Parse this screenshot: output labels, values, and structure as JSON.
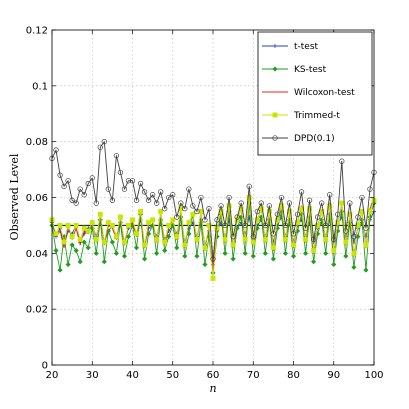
{
  "chart_data": {
    "type": "line",
    "xlabel": "n",
    "ylabel": "Observed Level",
    "xlim": [
      20,
      100
    ],
    "ylim": [
      0,
      0.12
    ],
    "xticks": [
      "20",
      "30",
      "40",
      "50",
      "60",
      "70",
      "80",
      "90",
      "100"
    ],
    "yticks": [
      "0",
      "0.02",
      "0.04",
      "0.06",
      "0.08",
      "0.1",
      "0.12"
    ],
    "grid": true,
    "legend_position": "top-right",
    "reference_line": 0.05,
    "x": [
      20,
      21,
      22,
      23,
      24,
      25,
      26,
      27,
      28,
      29,
      30,
      31,
      32,
      33,
      34,
      35,
      36,
      37,
      38,
      39,
      40,
      41,
      42,
      43,
      44,
      45,
      46,
      47,
      48,
      49,
      50,
      51,
      52,
      53,
      54,
      55,
      56,
      57,
      58,
      59,
      60,
      61,
      62,
      63,
      64,
      65,
      66,
      67,
      68,
      69,
      70,
      71,
      72,
      73,
      74,
      75,
      76,
      77,
      78,
      79,
      80,
      81,
      82,
      83,
      84,
      85,
      86,
      87,
      88,
      89,
      90,
      91,
      92,
      93,
      94,
      95,
      96,
      97,
      98,
      99,
      100
    ],
    "series": [
      {
        "name": "t-test",
        "color": "#1f3fd6",
        "marker": "plus",
        "values": [
          0.051,
          0.046,
          0.049,
          0.043,
          0.048,
          0.047,
          0.05,
          0.044,
          0.047,
          0.049,
          0.05,
          0.046,
          0.052,
          0.044,
          0.048,
          0.05,
          0.046,
          0.051,
          0.044,
          0.049,
          0.05,
          0.047,
          0.052,
          0.043,
          0.049,
          0.05,
          0.046,
          0.052,
          0.045,
          0.048,
          0.05,
          0.047,
          0.053,
          0.044,
          0.049,
          0.051,
          0.046,
          0.052,
          0.043,
          0.048,
          0.036,
          0.048,
          0.051,
          0.046,
          0.052,
          0.043,
          0.049,
          0.051,
          0.047,
          0.053,
          0.045,
          0.05,
          0.052,
          0.046,
          0.051,
          0.044,
          0.05,
          0.053,
          0.046,
          0.051,
          0.044,
          0.05,
          0.052,
          0.046,
          0.051,
          0.044,
          0.049,
          0.051,
          0.046,
          0.052,
          0.044,
          0.05,
          0.053,
          0.046,
          0.051,
          0.044,
          0.049,
          0.051,
          0.046,
          0.052,
          0.055
        ]
      },
      {
        "name": "KS-test",
        "color": "#1e9e1e",
        "marker": "diamond",
        "values": [
          0.05,
          0.041,
          0.034,
          0.046,
          0.036,
          0.043,
          0.041,
          0.037,
          0.044,
          0.042,
          0.049,
          0.04,
          0.052,
          0.037,
          0.048,
          0.044,
          0.04,
          0.051,
          0.039,
          0.046,
          0.05,
          0.042,
          0.054,
          0.038,
          0.047,
          0.05,
          0.04,
          0.052,
          0.041,
          0.046,
          0.05,
          0.042,
          0.053,
          0.039,
          0.047,
          0.054,
          0.039,
          0.051,
          0.036,
          0.046,
          0.033,
          0.046,
          0.054,
          0.04,
          0.055,
          0.038,
          0.049,
          0.053,
          0.04,
          0.058,
          0.039,
          0.049,
          0.053,
          0.04,
          0.052,
          0.038,
          0.049,
          0.055,
          0.04,
          0.052,
          0.039,
          0.048,
          0.054,
          0.04,
          0.053,
          0.037,
          0.047,
          0.052,
          0.04,
          0.054,
          0.036,
          0.048,
          0.055,
          0.039,
          0.051,
          0.035,
          0.046,
          0.052,
          0.034,
          0.053,
          0.058
        ]
      },
      {
        "name": "Wilcoxon-test",
        "color": "#e8231d",
        "marker": "none",
        "values": [
          0.052,
          0.046,
          0.048,
          0.042,
          0.05,
          0.045,
          0.049,
          0.043,
          0.048,
          0.047,
          0.051,
          0.044,
          0.054,
          0.043,
          0.05,
          0.049,
          0.045,
          0.053,
          0.043,
          0.05,
          0.051,
          0.046,
          0.055,
          0.042,
          0.05,
          0.052,
          0.044,
          0.055,
          0.043,
          0.049,
          0.052,
          0.045,
          0.056,
          0.042,
          0.051,
          0.054,
          0.044,
          0.055,
          0.041,
          0.05,
          0.034,
          0.049,
          0.055,
          0.044,
          0.057,
          0.042,
          0.052,
          0.056,
          0.044,
          0.061,
          0.043,
          0.052,
          0.056,
          0.044,
          0.055,
          0.041,
          0.052,
          0.058,
          0.044,
          0.055,
          0.042,
          0.051,
          0.057,
          0.044,
          0.056,
          0.04,
          0.05,
          0.055,
          0.044,
          0.058,
          0.04,
          0.051,
          0.058,
          0.043,
          0.054,
          0.039,
          0.05,
          0.055,
          0.042,
          0.056,
          0.06
        ]
      },
      {
        "name": "Trimmed-t",
        "color": "#c7e600",
        "marker": "square",
        "values": [
          0.052,
          0.047,
          0.05,
          0.044,
          0.05,
          0.046,
          0.05,
          0.045,
          0.049,
          0.048,
          0.051,
          0.045,
          0.054,
          0.044,
          0.051,
          0.05,
          0.046,
          0.053,
          0.044,
          0.05,
          0.052,
          0.047,
          0.055,
          0.043,
          0.051,
          0.052,
          0.045,
          0.055,
          0.044,
          0.05,
          0.052,
          0.046,
          0.056,
          0.043,
          0.051,
          0.054,
          0.045,
          0.055,
          0.042,
          0.05,
          0.031,
          0.049,
          0.055,
          0.045,
          0.057,
          0.043,
          0.052,
          0.056,
          0.045,
          0.06,
          0.044,
          0.052,
          0.056,
          0.045,
          0.055,
          0.042,
          0.052,
          0.057,
          0.045,
          0.055,
          0.043,
          0.051,
          0.056,
          0.045,
          0.056,
          0.041,
          0.05,
          0.055,
          0.045,
          0.057,
          0.041,
          0.051,
          0.058,
          0.044,
          0.054,
          0.04,
          0.05,
          0.055,
          0.043,
          0.055,
          0.059
        ]
      },
      {
        "name": "DPD(0.1)",
        "color": "#404040",
        "marker": "circle",
        "values": [
          0.074,
          0.077,
          0.068,
          0.064,
          0.066,
          0.059,
          0.058,
          0.063,
          0.061,
          0.065,
          0.067,
          0.058,
          0.078,
          0.08,
          0.063,
          0.059,
          0.075,
          0.069,
          0.063,
          0.066,
          0.066,
          0.059,
          0.065,
          0.062,
          0.059,
          0.061,
          0.058,
          0.062,
          0.056,
          0.06,
          0.061,
          0.053,
          0.058,
          0.056,
          0.063,
          0.057,
          0.055,
          0.06,
          0.052,
          0.056,
          0.038,
          0.052,
          0.057,
          0.05,
          0.06,
          0.046,
          0.053,
          0.058,
          0.05,
          0.064,
          0.046,
          0.055,
          0.058,
          0.05,
          0.057,
          0.047,
          0.054,
          0.06,
          0.05,
          0.058,
          0.047,
          0.054,
          0.062,
          0.049,
          0.059,
          0.045,
          0.053,
          0.058,
          0.05,
          0.061,
          0.045,
          0.054,
          0.073,
          0.048,
          0.058,
          0.046,
          0.053,
          0.06,
          0.049,
          0.063,
          0.069
        ]
      }
    ]
  }
}
